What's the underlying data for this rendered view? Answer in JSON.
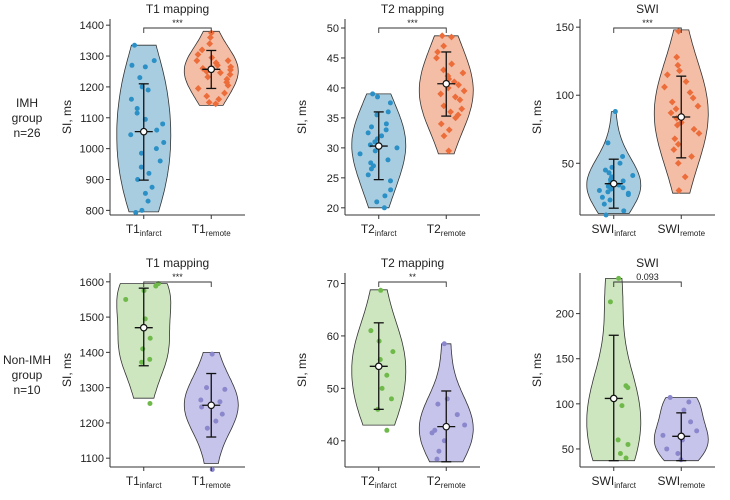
{
  "rows": [
    {
      "lines": [
        "IMH",
        "group",
        "n=26"
      ]
    },
    {
      "lines": [
        "Non-IMH",
        "group",
        "n=10"
      ]
    }
  ],
  "colors": {
    "t1_infarct_fill": "#a9cde0",
    "t1_infarct_dot": "#2a90c6",
    "t1_remote_fill": "#f4bea6",
    "t1_remote_dot": "#ec6c3a",
    "green_fill": "#cde6bf",
    "green_dot": "#6fb94b",
    "purple_fill": "#c6c4ea",
    "purple_dot": "#8b87cc"
  },
  "chart_data": [
    {
      "type": "violin",
      "row": 0,
      "col": 0,
      "title": "T1 mapping",
      "ylabel": "SI, ms",
      "ylim": [
        785,
        1420
      ],
      "yticks": [
        800,
        900,
        1000,
        1100,
        1200,
        1300,
        1400
      ],
      "significance": "***",
      "groups": [
        {
          "base": "T1",
          "sub": "infarct",
          "color": "t1_infarct",
          "mean": 1055,
          "whisker": [
            898,
            1210
          ],
          "vrange": [
            795,
            1335
          ],
          "points": [
            1335,
            1285,
            1270,
            1265,
            1230,
            1200,
            1190,
            1160,
            1130,
            1095,
            1080,
            1060,
            1045,
            1020,
            1000,
            985,
            960,
            940,
            920,
            900,
            875,
            855,
            830,
            800,
            793,
            1115
          ]
        },
        {
          "base": "T1",
          "sub": "remote",
          "color": "t1_remote",
          "mean": 1257,
          "whisker": [
            1195,
            1318
          ],
          "vrange": [
            1140,
            1380
          ],
          "points": [
            1375,
            1360,
            1340,
            1320,
            1305,
            1295,
            1285,
            1278,
            1270,
            1265,
            1260,
            1255,
            1250,
            1246,
            1240,
            1232,
            1225,
            1215,
            1205,
            1195,
            1180,
            1170,
            1160,
            1150,
            1145,
            1285
          ]
        }
      ]
    },
    {
      "type": "violin",
      "row": 0,
      "col": 1,
      "title": "T2 mapping",
      "ylabel": "SI, ms",
      "ylim": [
        18.8,
        51.5
      ],
      "yticks": [
        20,
        25,
        30,
        35,
        40,
        45,
        50
      ],
      "significance": "***",
      "groups": [
        {
          "base": "T2",
          "sub": "infarct",
          "color": "t1_infarct",
          "mean": 30.3,
          "whisker": [
            24.7,
            36.0
          ],
          "vrange": [
            20,
            39
          ],
          "points": [
            39,
            38.5,
            37.5,
            36,
            35.5,
            34,
            33,
            32.5,
            32,
            31.5,
            31,
            30.5,
            30,
            29.5,
            29,
            28,
            27.5,
            26.5,
            25.5,
            24.5,
            23,
            22,
            21,
            20,
            33.5,
            27
          ]
        },
        {
          "base": "T2",
          "sub": "remote",
          "color": "t1_remote",
          "mean": 40.7,
          "whisker": [
            35.3,
            46.0
          ],
          "vrange": [
            29,
            48.7
          ],
          "points": [
            48.7,
            48.5,
            47,
            46,
            45,
            44,
            43,
            42.5,
            42,
            41.5,
            41,
            40.5,
            40,
            39.5,
            39,
            38.5,
            38,
            37,
            36.5,
            35.5,
            35,
            34,
            33,
            32,
            29.5,
            36
          ]
        }
      ]
    },
    {
      "type": "violin",
      "row": 0,
      "col": 2,
      "title": "SWI",
      "ylabel": "SI, ms",
      "ylim": [
        12,
        156
      ],
      "yticks": [
        50,
        100,
        150
      ],
      "significance": "***",
      "groups": [
        {
          "base": "SWI",
          "sub": "infarct",
          "color": "t1_infarct",
          "mean": 35,
          "whisker": [
            17,
            53
          ],
          "vrange": [
            13,
            88
          ],
          "points": [
            88,
            65,
            55,
            50,
            47,
            45,
            43,
            41,
            40,
            38,
            37,
            36,
            35,
            34,
            33,
            32,
            31,
            30,
            29,
            28,
            27,
            25,
            23,
            20,
            15,
            12
          ]
        },
        {
          "base": "SWI",
          "sub": "remote",
          "color": "t1_remote",
          "mean": 84,
          "whisker": [
            54,
            114
          ],
          "vrange": [
            28,
            148
          ],
          "points": [
            147,
            128,
            122,
            118,
            115,
            110,
            106,
            102,
            98,
            95,
            92,
            90,
            87,
            85,
            83,
            80,
            78,
            75,
            72,
            68,
            64,
            60,
            55,
            50,
            40,
            30
          ]
        }
      ]
    },
    {
      "type": "violin",
      "row": 1,
      "col": 0,
      "title": "T1 mapping",
      "ylabel": "SI, ms",
      "ylim": [
        1075,
        1625
      ],
      "yticks": [
        1100,
        1200,
        1300,
        1400,
        1500,
        1600
      ],
      "significance": "***",
      "groups": [
        {
          "base": "T1",
          "sub": "infarct",
          "color": "green",
          "mean": 1470,
          "whisker": [
            1362,
            1582
          ],
          "vrange": [
            1270,
            1595
          ],
          "points": [
            1595,
            1588,
            1575,
            1550,
            1495,
            1440,
            1410,
            1380,
            1372,
            1255
          ]
        },
        {
          "base": "T1",
          "sub": "remote",
          "color": "purple",
          "mean": 1250,
          "whisker": [
            1160,
            1340
          ],
          "vrange": [
            1085,
            1400
          ],
          "points": [
            1395,
            1300,
            1295,
            1265,
            1260,
            1245,
            1225,
            1205,
            1185,
            1068
          ]
        }
      ]
    },
    {
      "type": "violin",
      "row": 1,
      "col": 1,
      "title": "T2 mapping",
      "ylabel": "SI, ms",
      "ylim": [
        35,
        72
      ],
      "yticks": [
        40,
        50,
        60,
        70
      ],
      "significance": "**",
      "groups": [
        {
          "base": "T2",
          "sub": "infarct",
          "color": "green",
          "mean": 54.2,
          "whisker": [
            46,
            62.5
          ],
          "vrange": [
            43,
            68.8
          ],
          "points": [
            68.7,
            61,
            59,
            57,
            55.5,
            52.5,
            50,
            48,
            46,
            42
          ]
        },
        {
          "base": "T2",
          "sub": "remote",
          "color": "purple",
          "mean": 42.7,
          "whisker": [
            36,
            49.5
          ],
          "vrange": [
            36,
            58.5
          ],
          "points": [
            58.5,
            48,
            47,
            45,
            43,
            42,
            41.5,
            40,
            38,
            36.5
          ]
        }
      ]
    },
    {
      "type": "violin",
      "row": 1,
      "col": 2,
      "title": "SWI",
      "ylabel": "SI, ms",
      "ylim": [
        30,
        245
      ],
      "yticks": [
        50,
        100,
        150,
        200
      ],
      "significance": "0.093",
      "groups": [
        {
          "base": "SWI",
          "sub": "infarct",
          "color": "green",
          "mean": 106,
          "whisker": [
            37,
            176
          ],
          "vrange": [
            37,
            239
          ],
          "points": [
            239,
            213,
            120,
            118,
            105,
            98,
            60,
            55,
            45,
            40
          ]
        },
        {
          "base": "SWI",
          "sub": "remote",
          "color": "purple",
          "mean": 64,
          "whisker": [
            37,
            90
          ],
          "vrange": [
            37,
            107
          ],
          "points": [
            107,
            102,
            93,
            80,
            70,
            65,
            60,
            50,
            45,
            38
          ]
        }
      ]
    }
  ]
}
